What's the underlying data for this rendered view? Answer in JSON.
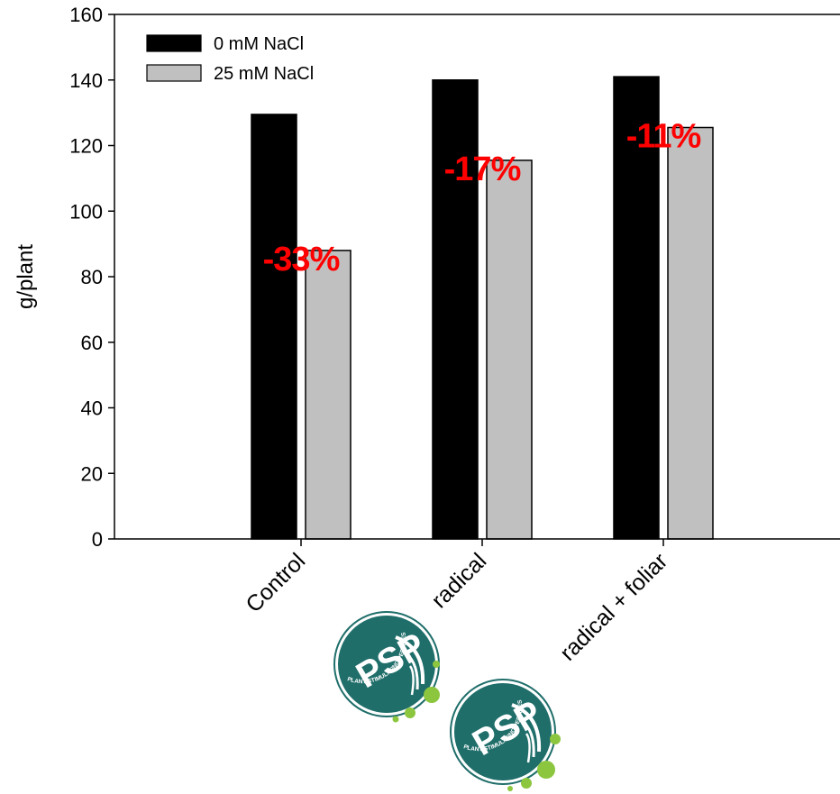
{
  "colors": {
    "series_0": "#000000",
    "series_1": "#c0c0c0",
    "percent_label": "#ff0000",
    "logo_teal": "#1f6e6a",
    "logo_green": "#8cc63f"
  },
  "chart_data": {
    "type": "bar",
    "title": "",
    "xlabel": "",
    "ylabel": "g/plant",
    "ylim": [
      0,
      160
    ],
    "yticks": [
      0,
      20,
      40,
      60,
      80,
      100,
      120,
      140,
      160
    ],
    "grid": false,
    "legend_position": "top-left",
    "categories": [
      "Control",
      "radical",
      "radical + foliar"
    ],
    "series": [
      {
        "name": "0 mM NaCl",
        "values": [
          129.5,
          140,
          141
        ]
      },
      {
        "name": "25 mM NaCl",
        "values": [
          88,
          115.5,
          125.5
        ]
      }
    ],
    "annotations": [
      "-33%",
      "-17%",
      "-11%"
    ]
  },
  "logo": {
    "text": "PSP",
    "subtext": "PLANT STIMULATING PEPTIDES"
  }
}
